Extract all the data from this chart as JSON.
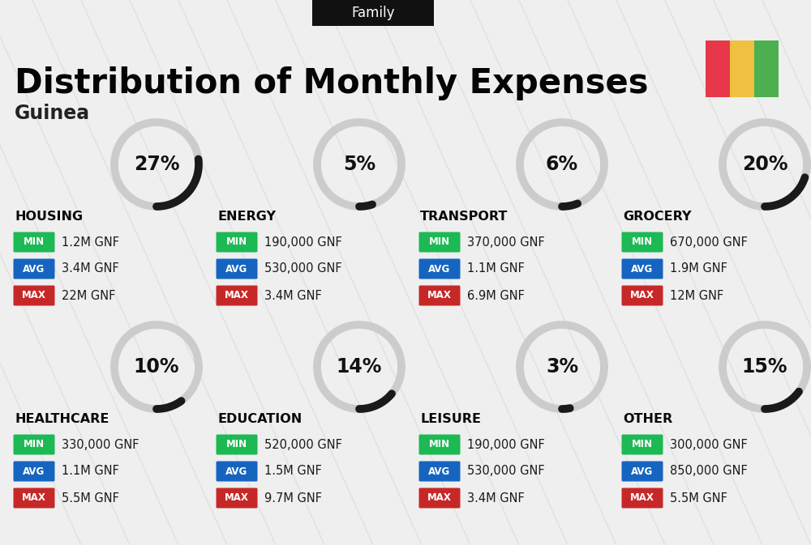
{
  "title": "Distribution of Monthly Expenses",
  "subtitle": "Guinea",
  "header_label": "Family",
  "bg_color": "#efefef",
  "flag_colors": [
    "#e8374a",
    "#f0c040",
    "#4caf50"
  ],
  "categories": [
    {
      "name": "HOUSING",
      "pct": 27,
      "min": "1.2M GNF",
      "avg": "3.4M GNF",
      "max": "22M GNF",
      "row": 0,
      "col": 0
    },
    {
      "name": "ENERGY",
      "pct": 5,
      "min": "190,000 GNF",
      "avg": "530,000 GNF",
      "max": "3.4M GNF",
      "row": 0,
      "col": 1
    },
    {
      "name": "TRANSPORT",
      "pct": 6,
      "min": "370,000 GNF",
      "avg": "1.1M GNF",
      "max": "6.9M GNF",
      "row": 0,
      "col": 2
    },
    {
      "name": "GROCERY",
      "pct": 20,
      "min": "670,000 GNF",
      "avg": "1.9M GNF",
      "max": "12M GNF",
      "row": 0,
      "col": 3
    },
    {
      "name": "HEALTHCARE",
      "pct": 10,
      "min": "330,000 GNF",
      "avg": "1.1M GNF",
      "max": "5.5M GNF",
      "row": 1,
      "col": 0
    },
    {
      "name": "EDUCATION",
      "pct": 14,
      "min": "520,000 GNF",
      "avg": "1.5M GNF",
      "max": "9.7M GNF",
      "row": 1,
      "col": 1
    },
    {
      "name": "LEISURE",
      "pct": 3,
      "min": "190,000 GNF",
      "avg": "530,000 GNF",
      "max": "3.4M GNF",
      "row": 1,
      "col": 2
    },
    {
      "name": "OTHER",
      "pct": 15,
      "min": "300,000 GNF",
      "avg": "850,000 GNF",
      "max": "5.5M GNF",
      "row": 1,
      "col": 3
    }
  ],
  "min_color": "#1db954",
  "avg_color": "#1565c0",
  "max_color": "#c62828",
  "value_text_color": "#1a1a1a",
  "category_text_color": "#0a0a0a",
  "donut_dark": "#1a1a1a",
  "donut_light": "#cccccc",
  "title_fontsize": 30,
  "subtitle_fontsize": 17,
  "header_fontsize": 12,
  "cat_fontsize": 11.5,
  "pct_fontsize": 17,
  "val_fontsize": 10.5,
  "badge_fontsize": 8.5,
  "diag_line_color": "#d8d8d8",
  "diag_alpha": 0.55
}
